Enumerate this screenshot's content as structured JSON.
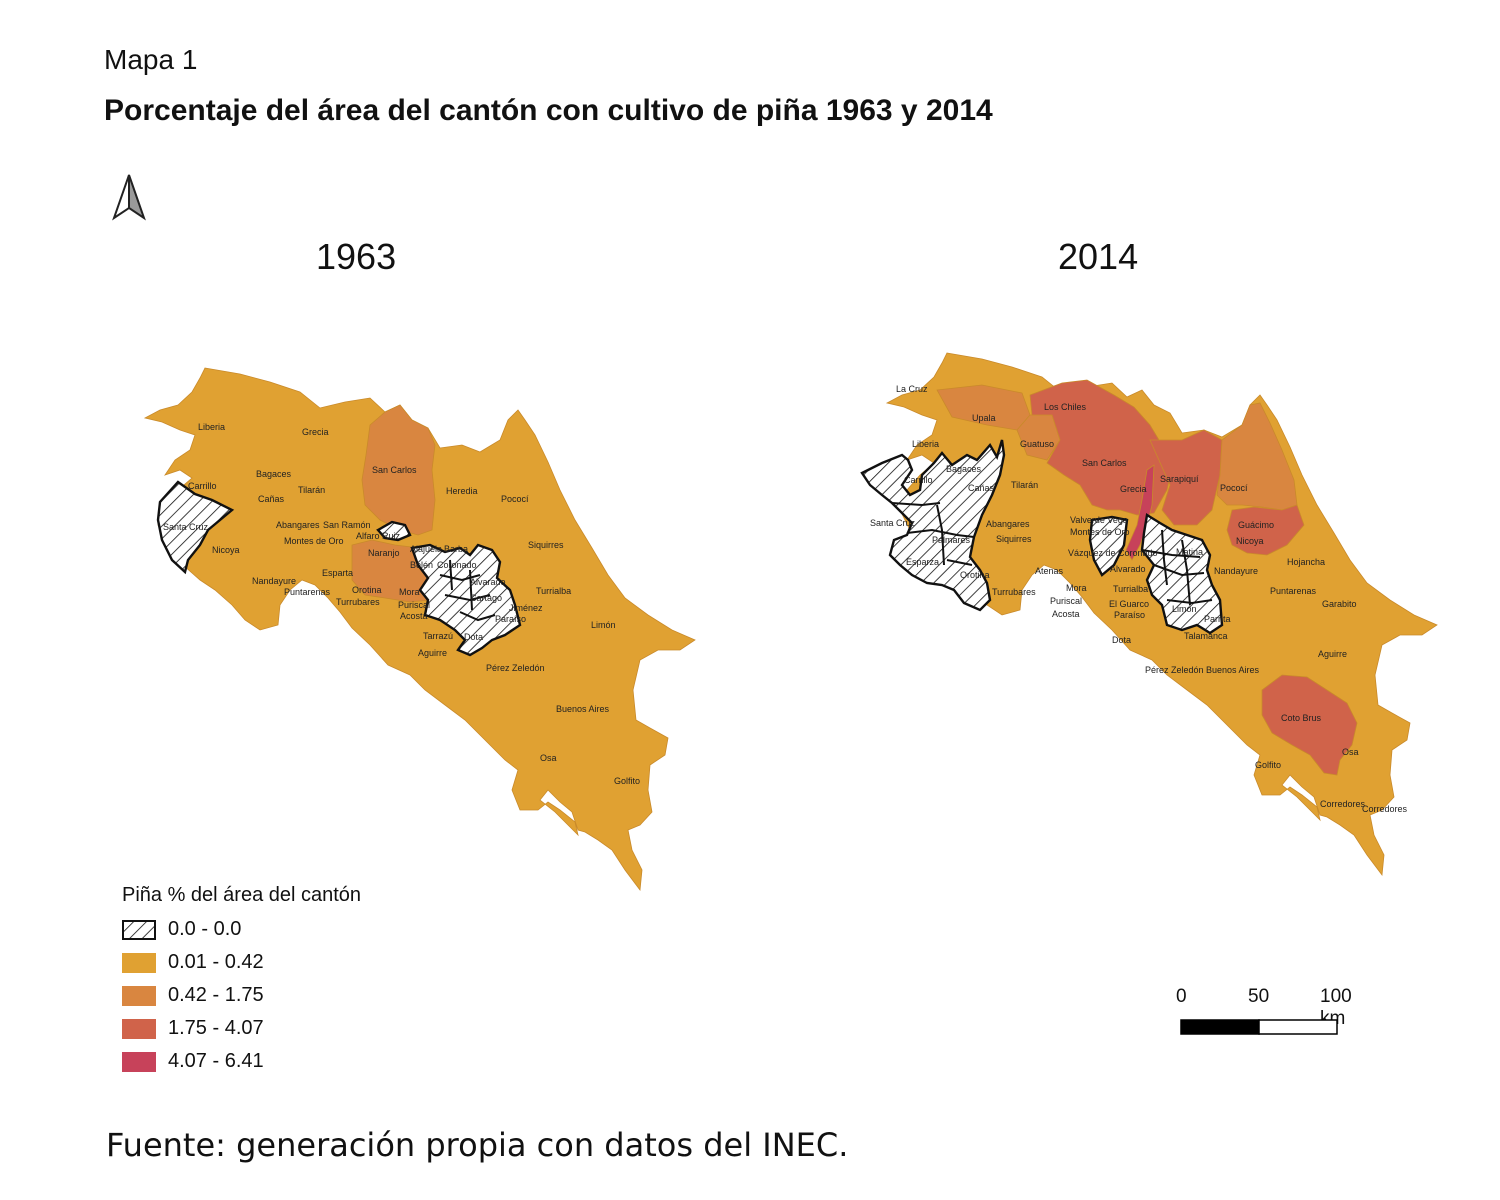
{
  "header": {
    "label": "Mapa 1",
    "title": "Porcentaje del área del cantón con cultivo de piña 1963 y 2014"
  },
  "maps": [
    {
      "year": "1963",
      "cantons": [
        "Liberia",
        "Grecia",
        "San Carlos",
        "Bagaces",
        "Carrillo",
        "Tilarán",
        "Cañas",
        "Heredia",
        "Pococí",
        "Santa Cruz",
        "Nicoya",
        "Abangares",
        "San Ramón",
        "Montes de Oro",
        "Alfaro Ruiz",
        "Naranjo",
        "Alajuela",
        "Barba",
        "Siquirres",
        "Belén",
        "Coronado",
        "Esparta",
        "Nandayure",
        "Alvarado",
        "Orotina",
        "Turrialba",
        "Puntarenas",
        "Turrubares",
        "Mora",
        "Cartago",
        "Jiménez",
        "Puriscal",
        "Paraíso",
        "Acosta",
        "Limón",
        "Tarrazú",
        "Dota",
        "Aguirre",
        "Pérez Zeledón",
        "Buenos Aires",
        "Osa",
        "Golfito"
      ]
    },
    {
      "year": "2014",
      "cantons": [
        "La Cruz",
        "Upala",
        "Los Chiles",
        "Liberia",
        "Guatuso",
        "San Carlos",
        "Bagaces",
        "Sarapiquí",
        "Carrillo",
        "Tilarán",
        "Grecia",
        "Pococí",
        "Cañas",
        "Abangares",
        "Guácimo",
        "Santa Cruz",
        "Valverde Vega",
        "Montes de Oro",
        "Siquirres",
        "Nicoya",
        "Palmares",
        "Vázquez de Coronado",
        "Matina",
        "Hojancha",
        "Esparza",
        "Atenas",
        "Alvarado",
        "Nandayure",
        "Orotina",
        "Mora",
        "Turrialba",
        "Puntarenas",
        "Turrubares",
        "Puriscal",
        "El Guarco",
        "Limón",
        "Garabito",
        "Acosta",
        "Paraíso",
        "Parrita",
        "Dota",
        "Talamanca",
        "Aguirre",
        "Pérez Zeledón",
        "Buenos Aires",
        "Coto Brus",
        "Osa",
        "Golfito",
        "Corredores"
      ]
    }
  ],
  "legend": {
    "title": "Piña % del área del cantón",
    "items": [
      {
        "label": "0.0 - 0.0",
        "color": "hatched"
      },
      {
        "label": "0.01 - 0.42",
        "color": "#e0a132"
      },
      {
        "label": "0.42 - 1.75",
        "color": "#d98640"
      },
      {
        "label": "1.75 - 4.07",
        "color": "#d0634a"
      },
      {
        "label": "4.07 - 6.41",
        "color": "#c7425a"
      }
    ]
  },
  "scale": {
    "ticks": [
      "0",
      "50",
      "100 km"
    ]
  },
  "north_arrow": "north-arrow-icon",
  "source": "Fuente: generación propia con datos del INEC."
}
